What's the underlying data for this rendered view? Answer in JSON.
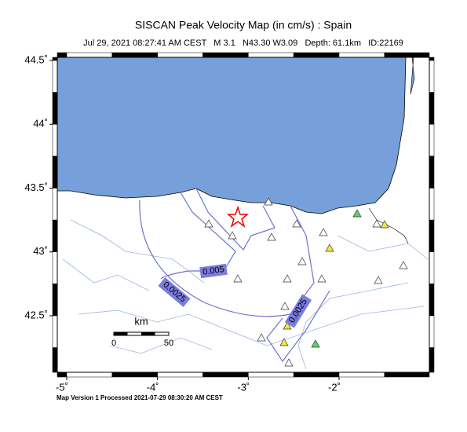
{
  "title": "SISCAN Peak Velocity Map (in cm/s) : Spain",
  "subtitle": "Jul 29, 2021 08:27:41 AM CEST   M 3.1   N43.30 W3.09   Depth: 61.1km   ID:22169",
  "footer": "Map Version 1 Processed 2021-07-29 08:30:20 AM CEST",
  "lon_ticks": [
    {
      "value": -5,
      "label": "-5˚"
    },
    {
      "value": -4,
      "label": "-4˚"
    },
    {
      "value": -3,
      "label": "-3˚"
    },
    {
      "value": -2,
      "label": "-2˚"
    }
  ],
  "lat_ticks": [
    {
      "value": 44.5,
      "label": "44.5˚"
    },
    {
      "value": 44,
      "label": "44˚"
    },
    {
      "value": 43.5,
      "label": "43.5˚"
    },
    {
      "value": 43,
      "label": "43˚"
    },
    {
      "value": 42.5,
      "label": "42.5˚"
    }
  ],
  "contour_labels": [
    "0.005",
    "0.0025",
    "0.0025"
  ],
  "scale_bar": {
    "unit": "km",
    "start": "0",
    "end": "50"
  }
}
